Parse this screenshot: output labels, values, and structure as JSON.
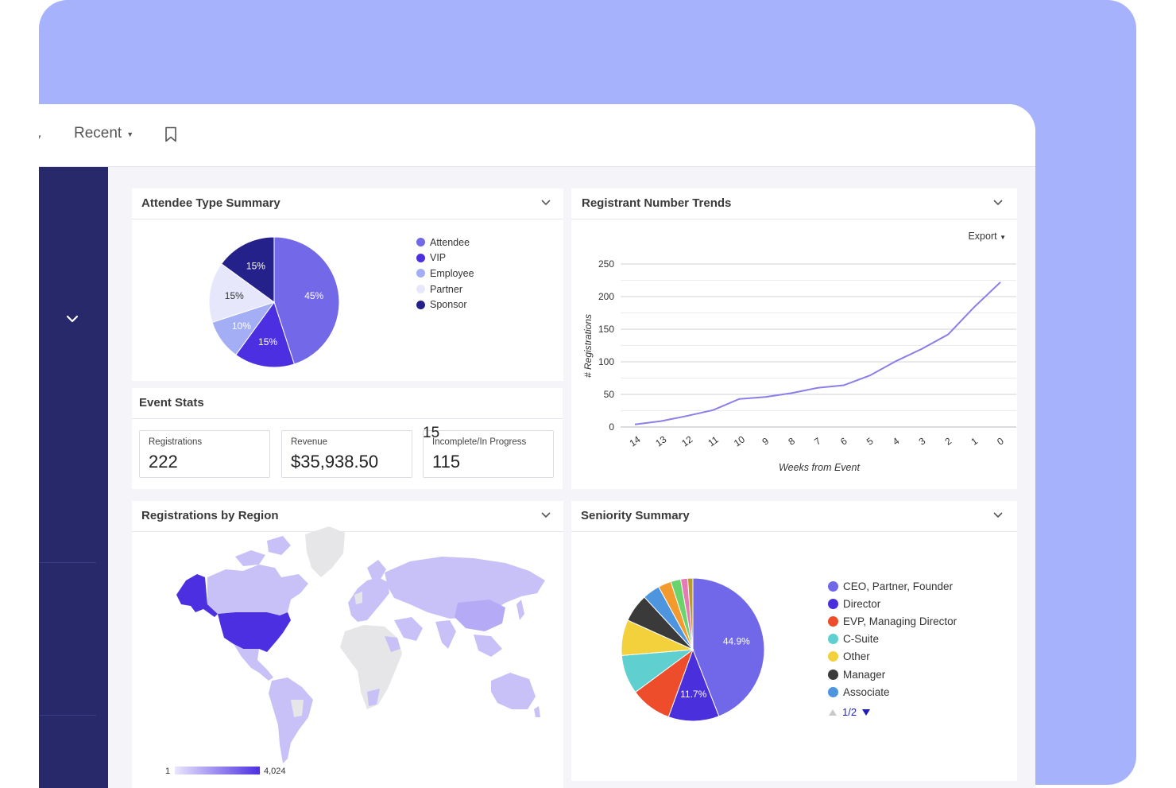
{
  "toolbar": {
    "recent_label": "Recent"
  },
  "attendee_summary": {
    "title": "Attendee Type Summary",
    "legend": [
      {
        "label": "Attendee",
        "color": "#7268e8"
      },
      {
        "label": "VIP",
        "color": "#4c2fe0"
      },
      {
        "label": "Employee",
        "color": "#a3aef5"
      },
      {
        "label": "Partner",
        "color": "#e6e7fb"
      },
      {
        "label": "Sponsor",
        "color": "#25218a"
      }
    ],
    "slice_labels": [
      "45%",
      "15%",
      "10%",
      "15%",
      "15%"
    ]
  },
  "event_stats": {
    "title": "Event Stats",
    "overlay_number": "15",
    "stats": [
      {
        "label": "Registrations",
        "value": "222"
      },
      {
        "label": "Revenue",
        "value": "$35,938.50"
      },
      {
        "label": "Incomplete/In Progress",
        "value": "115"
      }
    ]
  },
  "trends": {
    "title": "Registrant Number Trends",
    "export_label": "Export",
    "ylabel": "# Registrations",
    "xlabel": "Weeks from Event"
  },
  "region": {
    "title": "Registrations by Region",
    "scale_min": "1",
    "scale_max": "4,024"
  },
  "seniority": {
    "title": "Seniority Summary",
    "legend": [
      {
        "label": "CEO, Partner, Founder",
        "color": "#7068e8"
      },
      {
        "label": "Director",
        "color": "#4a2fdc"
      },
      {
        "label": "EVP, Managing Director",
        "color": "#ee4d2b"
      },
      {
        "label": "C-Suite",
        "color": "#5fcfcf"
      },
      {
        "label": "Other",
        "color": "#f2d13c"
      },
      {
        "label": "Manager",
        "color": "#3a3a3a"
      },
      {
        "label": "Associate",
        "color": "#4e95df"
      }
    ],
    "pager": "1/2",
    "slice_labels": [
      "44.9%",
      "11.7%"
    ]
  },
  "chart_data": [
    {
      "type": "pie",
      "title": "Attendee Type Summary",
      "labels": [
        "Attendee",
        "VIP",
        "Employee",
        "Partner",
        "Sponsor"
      ],
      "values": [
        45,
        15,
        10,
        15,
        15
      ],
      "colors": [
        "#7268e8",
        "#4c2fe0",
        "#a3aef5",
        "#e6e7fb",
        "#25218a"
      ]
    },
    {
      "type": "line",
      "title": "Registrant Number Trends",
      "xlabel": "Weeks from Event",
      "ylabel": "# Registrations",
      "x": [
        14,
        13,
        12,
        11,
        10,
        9,
        8,
        7,
        6,
        5,
        4,
        3,
        2,
        1,
        0
      ],
      "series": [
        {
          "values": [
            4,
            9,
            17,
            26,
            43,
            46,
            52,
            60,
            64,
            79,
            101,
            120,
            142,
            184,
            222
          ]
        }
      ],
      "ylim": [
        0,
        250
      ],
      "yticks": [
        0,
        50,
        100,
        150,
        200,
        250
      ],
      "grid": true,
      "color": "#8b7ee8"
    },
    {
      "type": "pie",
      "title": "Seniority Summary",
      "labels": [
        "CEO, Partner, Founder",
        "Director",
        "EVP, Managing Director",
        "C-Suite",
        "Other",
        "Manager",
        "Associate",
        "",
        "",
        "",
        ""
      ],
      "values": [
        44.9,
        11.7,
        9.5,
        9,
        8.2,
        6.5,
        4,
        3,
        2.3,
        1.6,
        1.2
      ],
      "colors": [
        "#7068e8",
        "#4a2fdc",
        "#ee4d2b",
        "#5fcfcf",
        "#f2d13c",
        "#3a3a3a",
        "#4e95df",
        "#f29a2e",
        "#6bd36b",
        "#e57ab5",
        "#b89a2e"
      ]
    }
  ]
}
